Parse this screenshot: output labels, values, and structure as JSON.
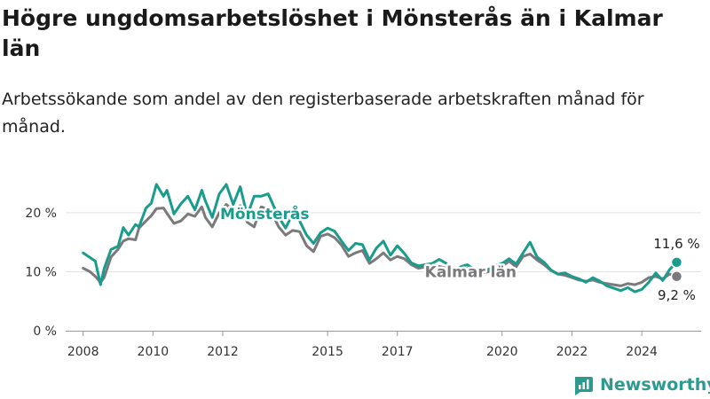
{
  "title": "Högre ungdomsarbetslöshet i Mönsterås än i Kalmar län",
  "subtitle": "Arbetssökande som andel av den registerbaserade arbetskraften månad för månad.",
  "brand": "Newsworthy",
  "colors": {
    "primary": "#1a9c8c",
    "secondary": "#7a797c",
    "grid": "#e3e3e3",
    "axis": "#999999",
    "brand": "#2c9a8e"
  },
  "chart_data": {
    "type": "line",
    "ylim": [
      0,
      26
    ],
    "yticks": [
      0,
      10,
      20
    ],
    "ytick_labels": [
      "0 %",
      "10 %",
      "20 %"
    ],
    "xlim": [
      2007.5,
      2025.7
    ],
    "xticks": [
      2008,
      2010,
      2012,
      2015,
      2017,
      2020,
      2022,
      2024
    ],
    "xtick_labels": [
      "2008",
      "2010",
      "2012",
      "2015",
      "2017",
      "2020",
      "2022",
      "2024"
    ],
    "grid": true,
    "series": [
      {
        "name": "Mönsterås",
        "label_text": "Mönsterås",
        "end_label": "11,6 %",
        "x": [
          2008.0,
          2008.2,
          2008.35,
          2008.5,
          2008.6,
          2008.8,
          2009.0,
          2009.15,
          2009.3,
          2009.5,
          2009.6,
          2009.8,
          2009.95,
          2010.1,
          2010.3,
          2010.4,
          2010.6,
          2010.8,
          2011.0,
          2011.2,
          2011.4,
          2011.5,
          2011.7,
          2011.9,
          2012.1,
          2012.3,
          2012.5,
          2012.7,
          2012.9,
          2013.1,
          2013.3,
          2013.45,
          2013.6,
          2013.8,
          2014.0,
          2014.2,
          2014.4,
          2014.6,
          2014.8,
          2015.0,
          2015.2,
          2015.4,
          2015.6,
          2015.8,
          2016.0,
          2016.2,
          2016.4,
          2016.6,
          2016.8,
          2017.0,
          2017.2,
          2017.4,
          2017.6,
          2017.8,
          2018.0,
          2018.2,
          2018.4,
          2018.6,
          2018.8,
          2019.0,
          2019.2,
          2019.4,
          2019.6,
          2019.8,
          2020.0,
          2020.2,
          2020.4,
          2020.6,
          2020.8,
          2021.0,
          2021.2,
          2021.4,
          2021.6,
          2021.8,
          2022.0,
          2022.2,
          2022.4,
          2022.6,
          2022.8,
          2023.0,
          2023.2,
          2023.4,
          2023.6,
          2023.8,
          2024.0,
          2024.2,
          2024.4,
          2024.6,
          2024.8,
          2025.0
        ],
        "y": [
          13.2,
          12.4,
          11.8,
          7.8,
          10.5,
          13.8,
          14.3,
          17.5,
          16.2,
          18.0,
          17.6,
          20.8,
          21.6,
          24.8,
          22.8,
          23.8,
          19.8,
          21.5,
          22.8,
          20.5,
          23.8,
          22.0,
          19.2,
          23.2,
          24.8,
          21.4,
          24.4,
          19.5,
          22.8,
          22.8,
          23.2,
          21.2,
          19.3,
          17.4,
          19.8,
          18.6,
          16.2,
          14.8,
          16.6,
          17.4,
          16.9,
          15.2,
          13.6,
          14.8,
          14.6,
          12.0,
          14.0,
          15.2,
          12.8,
          14.4,
          13.1,
          11.5,
          11.0,
          11.2,
          11.4,
          12.1,
          11.4,
          10.0,
          10.8,
          11.2,
          10.4,
          10.1,
          10.4,
          11.0,
          11.4,
          12.2,
          11.3,
          13.2,
          15.0,
          12.5,
          11.6,
          10.3,
          9.6,
          9.8,
          9.2,
          8.8,
          8.2,
          9.0,
          8.4,
          7.6,
          7.2,
          6.8,
          7.3,
          6.6,
          7.0,
          8.2,
          9.8,
          8.5,
          10.4,
          11.6
        ]
      },
      {
        "name": "Kalmar län",
        "label_text": "Kalmar län",
        "end_label": "9,2 %",
        "x": [
          2008.0,
          2008.2,
          2008.35,
          2008.5,
          2008.6,
          2008.8,
          2009.0,
          2009.15,
          2009.3,
          2009.5,
          2009.6,
          2009.8,
          2009.95,
          2010.1,
          2010.3,
          2010.4,
          2010.6,
          2010.8,
          2011.0,
          2011.2,
          2011.4,
          2011.5,
          2011.7,
          2011.9,
          2012.1,
          2012.3,
          2012.5,
          2012.7,
          2012.9,
          2013.1,
          2013.3,
          2013.45,
          2013.6,
          2013.8,
          2014.0,
          2014.2,
          2014.4,
          2014.6,
          2014.8,
          2015.0,
          2015.2,
          2015.4,
          2015.6,
          2015.8,
          2016.0,
          2016.2,
          2016.4,
          2016.6,
          2016.8,
          2017.0,
          2017.2,
          2017.4,
          2017.6,
          2017.8,
          2018.0,
          2018.2,
          2018.4,
          2018.6,
          2018.8,
          2019.0,
          2019.2,
          2019.4,
          2019.6,
          2019.8,
          2020.0,
          2020.2,
          2020.4,
          2020.6,
          2020.8,
          2021.0,
          2021.2,
          2021.4,
          2021.6,
          2021.8,
          2022.0,
          2022.2,
          2022.4,
          2022.6,
          2022.8,
          2023.0,
          2023.2,
          2023.4,
          2023.6,
          2023.8,
          2024.0,
          2024.2,
          2024.4,
          2024.6,
          2024.8,
          2025.0
        ],
        "y": [
          10.6,
          10.0,
          9.2,
          8.2,
          9.0,
          12.5,
          13.8,
          15.2,
          15.6,
          15.4,
          17.4,
          18.6,
          19.5,
          20.7,
          20.8,
          19.9,
          18.2,
          18.6,
          19.8,
          19.4,
          21.0,
          19.2,
          17.6,
          20.0,
          21.4,
          20.4,
          21.2,
          18.4,
          17.6,
          21.0,
          20.6,
          19.4,
          17.6,
          16.2,
          17.0,
          16.8,
          14.4,
          13.4,
          16.0,
          16.4,
          15.8,
          14.5,
          12.6,
          13.2,
          13.6,
          11.4,
          12.2,
          13.2,
          12.0,
          12.6,
          12.2,
          11.2,
          10.6,
          10.8,
          11.0,
          10.9,
          10.6,
          9.8,
          10.2,
          10.6,
          10.0,
          9.8,
          10.0,
          10.6,
          10.9,
          11.8,
          10.8,
          12.6,
          13.0,
          12.0,
          11.2,
          10.2,
          9.6,
          9.4,
          9.0,
          8.6,
          8.4,
          8.6,
          8.2,
          8.0,
          7.8,
          7.6,
          8.0,
          7.8,
          8.2,
          9.0,
          9.2,
          8.8,
          9.6,
          9.2
        ]
      }
    ]
  }
}
